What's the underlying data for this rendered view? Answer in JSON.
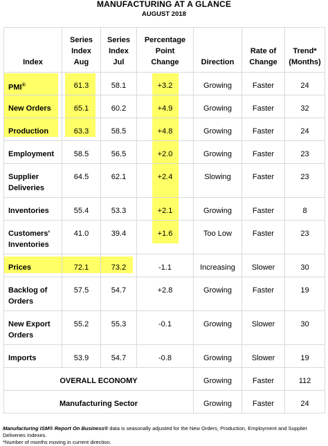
{
  "title": "MANUFACTURING AT A GLANCE",
  "subtitle": "AUGUST 2018",
  "headers": {
    "index": "Index",
    "series_aug": [
      "Series",
      "Index",
      "Aug"
    ],
    "series_jul": [
      "Series",
      "Index",
      "Jul"
    ],
    "pct_change": [
      "Percentage",
      "Point",
      "Change"
    ],
    "direction": "Direction",
    "rate": [
      "Rate of",
      "Change"
    ],
    "trend": [
      "Trend*",
      "(Months)"
    ]
  },
  "rows": [
    {
      "name": "PMI",
      "sup": "®",
      "aug": "61.3",
      "jul": "58.1",
      "chg": "+3.2",
      "dir": "Growing",
      "rate": "Faster",
      "trend": "24"
    },
    {
      "name": "New Orders",
      "aug": "65.1",
      "jul": "60.2",
      "chg": "+4.9",
      "dir": "Growing",
      "rate": "Faster",
      "trend": "32"
    },
    {
      "name": "Production",
      "aug": "63.3",
      "jul": "58.5",
      "chg": "+4.8",
      "dir": "Growing",
      "rate": "Faster",
      "trend": "24"
    },
    {
      "name": "Employment",
      "aug": "58.5",
      "jul": "56.5",
      "chg": "+2.0",
      "dir": "Growing",
      "rate": "Faster",
      "trend": "23"
    },
    {
      "name": "Supplier Deliveries",
      "aug": "64.5",
      "jul": "62.1",
      "chg": "+2.4",
      "dir": "Slowing",
      "rate": "Faster",
      "trend": "23"
    },
    {
      "name": "Inventories",
      "aug": "55.4",
      "jul": "53.3",
      "chg": "+2.1",
      "dir": "Growing",
      "rate": "Faster",
      "trend": "8"
    },
    {
      "name": "Customers' Inventories",
      "aug": "41.0",
      "jul": "39.4",
      "chg": "+1.6",
      "dir": "Too Low",
      "rate": "Faster",
      "trend": "23"
    },
    {
      "name": "Prices",
      "aug": "72.1",
      "jul": "73.2",
      "chg": "-1.1",
      "dir": "Increasing",
      "rate": "Slower",
      "trend": "30"
    },
    {
      "name": "Backlog of Orders",
      "aug": "57.5",
      "jul": "54.7",
      "chg": "+2.8",
      "dir": "Growing",
      "rate": "Faster",
      "trend": "19"
    },
    {
      "name": "New Export Orders",
      "aug": "55.2",
      "jul": "55.3",
      "chg": "-0.1",
      "dir": "Growing",
      "rate": "Slower",
      "trend": "30"
    },
    {
      "name": "Imports",
      "aug": "53.9",
      "jul": "54.7",
      "chg": "-0.8",
      "dir": "Growing",
      "rate": "Slower",
      "trend": "19"
    }
  ],
  "summary": [
    {
      "label": "OVERALL ECONOMY",
      "dir": "Growing",
      "rate": "Faster",
      "trend": "112"
    },
    {
      "label": "Manufacturing Sector",
      "dir": "Growing",
      "rate": "Faster",
      "trend": "24"
    }
  ],
  "footnote": {
    "brand": "Manufacturing ISM® Report On Business®",
    "text": " data is seasonally adjusted for the New Orders, Production, Employment and Supplier Deliveries Indexes.",
    "note": "*Number of months moving in current direction."
  },
  "highlight_color": "#ffff66"
}
